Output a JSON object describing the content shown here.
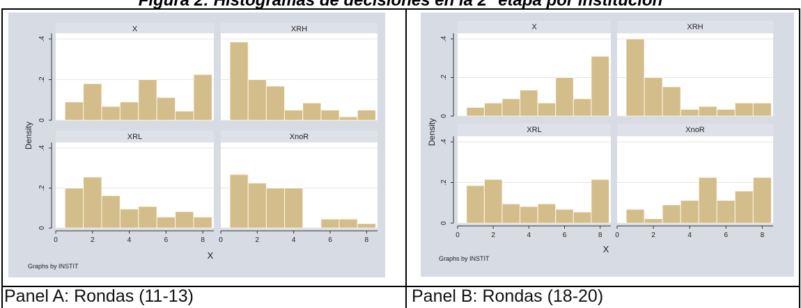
{
  "figure_title": "Figura 2: Histogramas de decisiones en la 2° etapa por institución",
  "panels": [
    {
      "caption": "Panel A: Rondas (11-13)"
    },
    {
      "caption": "Panel B: Rondas (18-20)"
    }
  ],
  "colors": {
    "bar_fill": "#d2bd8b",
    "bar_stroke": "#fff7e6",
    "outer_bg": "#d7dbe4",
    "plot_bg": "#ffffff",
    "header_bg": "#dee1e9",
    "grid": "#e4e4e4"
  },
  "chart_data": [
    {
      "type": "bar",
      "layout": "2x2 histograms by group",
      "ylabel": "Density",
      "xlabel": "X",
      "note": "Graphs by INSTIT",
      "xlim": [
        0,
        8.6
      ],
      "ylim": [
        0,
        0.4
      ],
      "xticks": [
        "0",
        "2",
        "4",
        "6",
        "8"
      ],
      "yticks": [
        "0",
        ".2",
        ".4"
      ],
      "grid": true,
      "subplots": [
        {
          "title": "X",
          "bin_start": 0.5,
          "bin_width": 1,
          "values": [
            0.09,
            0.18,
            0.068,
            0.09,
            0.2,
            0.112,
            0.045,
            0.225
          ]
        },
        {
          "title": "XRH",
          "bin_start": 0.5,
          "bin_width": 1,
          "values": [
            0.385,
            0.2,
            0.168,
            0.05,
            0.085,
            0.05,
            0.017,
            0.05
          ]
        },
        {
          "title": "XRL",
          "bin_start": 0.5,
          "bin_width": 1,
          "values": [
            0.2,
            0.255,
            0.162,
            0.095,
            0.108,
            0.055,
            0.082,
            0.055
          ]
        },
        {
          "title": "XnoR",
          "bin_start": 0.5,
          "bin_width": 1,
          "values": [
            0.268,
            0.225,
            0.2,
            0.2,
            0,
            0.045,
            0.045,
            0.022
          ]
        }
      ]
    },
    {
      "type": "bar",
      "layout": "2x2 histograms by group",
      "ylabel": "Density",
      "xlabel": "X",
      "note": "Graphs by INSTIT",
      "xlim": [
        0,
        8.6
      ],
      "ylim": [
        0,
        0.4
      ],
      "xticks": [
        "0",
        "2",
        "4",
        "6",
        "8"
      ],
      "yticks": [
        "0",
        ".2",
        ".4"
      ],
      "grid": true,
      "subplots": [
        {
          "title": "X",
          "bin_start": 0.5,
          "bin_width": 1,
          "values": [
            0.045,
            0.068,
            0.09,
            0.135,
            0.068,
            0.2,
            0.09,
            0.31
          ]
        },
        {
          "title": "XRH",
          "bin_start": 0.5,
          "bin_width": 1,
          "values": [
            0.4,
            0.2,
            0.152,
            0.035,
            0.05,
            0.035,
            0.068,
            0.068
          ]
        },
        {
          "title": "XRL",
          "bin_start": 0.5,
          "bin_width": 1,
          "values": [
            0.185,
            0.215,
            0.095,
            0.082,
            0.095,
            0.068,
            0.055,
            0.215
          ]
        },
        {
          "title": "XnoR",
          "bin_start": 0.5,
          "bin_width": 1,
          "values": [
            0.068,
            0.022,
            0.09,
            0.112,
            0.225,
            0.112,
            0.158,
            0.225
          ]
        }
      ]
    }
  ]
}
